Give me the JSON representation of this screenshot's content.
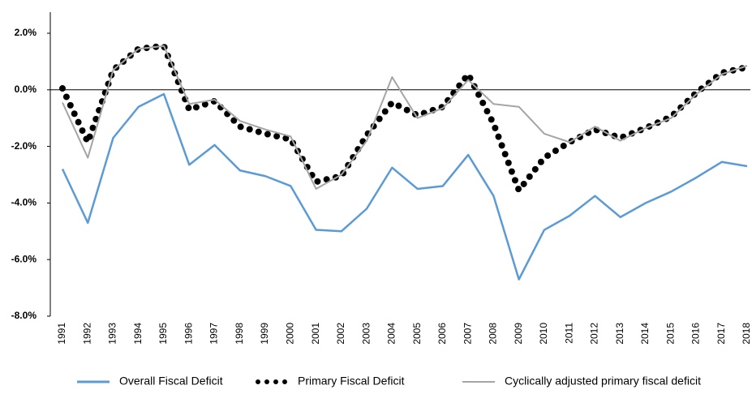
{
  "chart_data": {
    "type": "line",
    "categories": [
      "1991",
      "1992",
      "1993",
      "1994",
      "1995",
      "1996",
      "1997",
      "1998",
      "1999",
      "2000",
      "2001",
      "2002",
      "2003",
      "2004",
      "2005",
      "2006",
      "2007",
      "2008",
      "2009",
      "2010",
      "2011",
      "2012",
      "2013",
      "2014",
      "2015",
      "2016",
      "2017",
      "2018"
    ],
    "series": [
      {
        "name": "Overall Fiscal Deficit",
        "color": "#5b9bd5",
        "style": "solid",
        "values": [
          -2.8,
          -4.7,
          -1.7,
          -0.6,
          -0.15,
          -2.65,
          -1.95,
          -2.85,
          -3.05,
          -3.4,
          -4.95,
          -5.0,
          -4.2,
          -2.75,
          -3.5,
          -3.4,
          -2.3,
          -3.75,
          -6.7,
          -4.95,
          -4.45,
          -3.75,
          -4.5,
          -4.0,
          -3.6,
          -3.1,
          -2.55,
          -2.7
        ]
      },
      {
        "name": "Primary Fiscal Deficit",
        "color": "#000000",
        "style": "dotted",
        "values": [
          0.05,
          -1.85,
          0.7,
          1.45,
          1.55,
          -0.7,
          -0.4,
          -1.3,
          -1.55,
          -1.75,
          -3.25,
          -3.05,
          -1.6,
          -0.45,
          -0.9,
          -0.6,
          0.55,
          -1.2,
          -3.55,
          -2.4,
          -1.85,
          -1.4,
          -1.7,
          -1.35,
          -0.95,
          -0.1,
          0.6,
          0.8
        ]
      },
      {
        "name": "Cyclically adjusted primary fiscal deficit",
        "color": "#a5a5a5",
        "style": "solid",
        "values": [
          -0.45,
          -2.4,
          0.7,
          1.45,
          1.55,
          -0.5,
          -0.35,
          -1.1,
          -1.4,
          -1.65,
          -3.5,
          -3.0,
          -1.8,
          0.45,
          -1.0,
          -0.65,
          0.35,
          -0.5,
          -0.6,
          -1.55,
          -1.85,
          -1.3,
          -1.8,
          -1.35,
          -1.0,
          -0.15,
          0.55,
          0.85
        ]
      }
    ],
    "ylim": [
      -8,
      2
    ],
    "yticks": [
      {
        "value": -8,
        "label": "-8.0%"
      },
      {
        "value": -6,
        "label": "-6.0%"
      },
      {
        "value": -4,
        "label": "-4.0%"
      },
      {
        "value": -2,
        "label": "-2.0%"
      },
      {
        "value": 0,
        "label": "0.0%"
      },
      {
        "value": 2,
        "label": "2.0%"
      }
    ],
    "legend": "bottom"
  }
}
